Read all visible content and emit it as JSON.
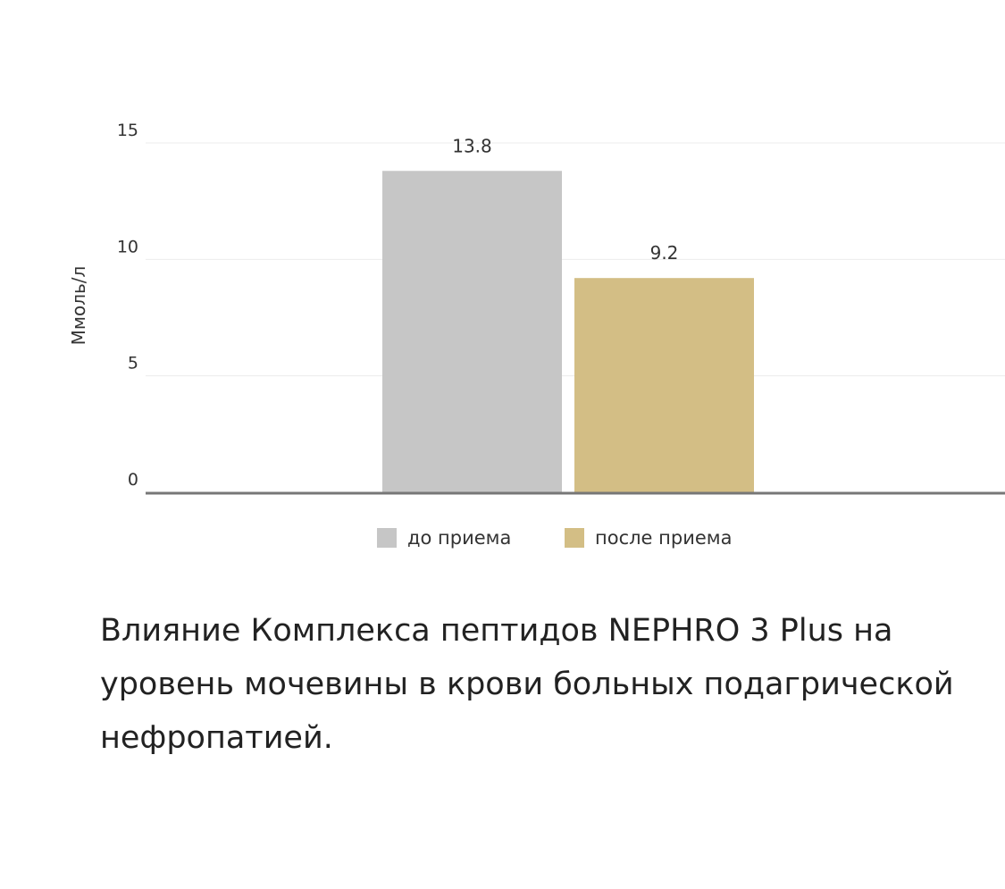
{
  "chart_data": {
    "type": "bar",
    "categories": [
      "до приема",
      "после приема"
    ],
    "values": [
      13.8,
      9.2
    ],
    "colors": [
      "#c6c6c6",
      "#d3be85"
    ],
    "ylabel": "Ммоль/л",
    "ylim": [
      0,
      15
    ],
    "yticks": [
      0,
      5,
      10,
      15
    ],
    "data_labels": [
      "13.8",
      "9.2"
    ],
    "grid": true,
    "legend_position": "bottom-center"
  },
  "caption": "Влияние Комплекса пептидов NEPHRO 3 Plus на уровень мочевины в крови больных подагрической нефропатией."
}
